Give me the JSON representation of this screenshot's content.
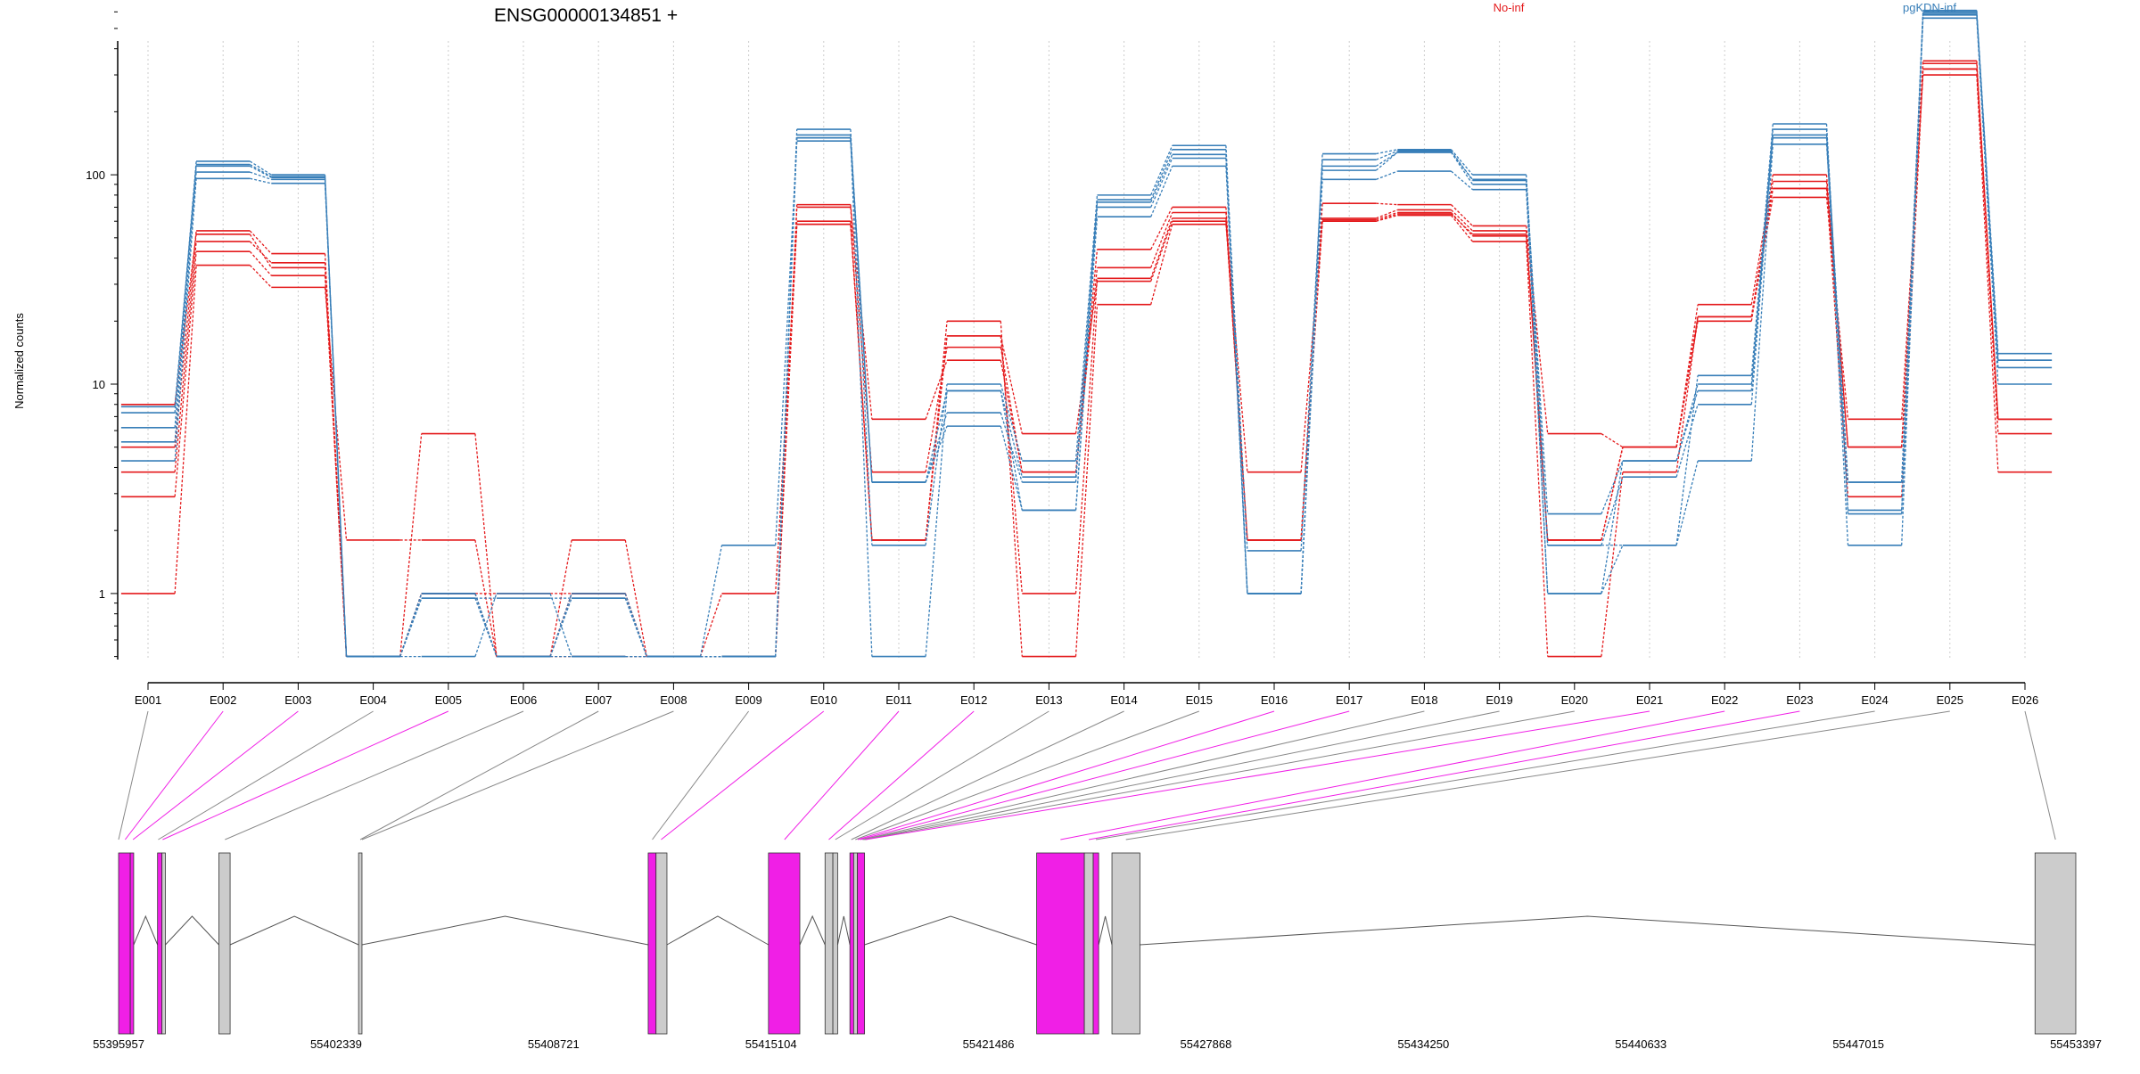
{
  "chart_data": {
    "type": "line",
    "title": "ENSG00000134851 +",
    "ylabel": "Normalized counts",
    "xlabel": "",
    "yscale": "log",
    "ylim": [
      0.5,
      800
    ],
    "yticks": [
      1,
      10,
      100
    ],
    "ytick_labels": [
      "1",
      "10",
      "100"
    ],
    "categories": [
      "E001",
      "E002",
      "E003",
      "E004",
      "E005",
      "E006",
      "E007",
      "E008",
      "E009",
      "E010",
      "E011",
      "E012",
      "E013",
      "E014",
      "E015",
      "E016",
      "E017",
      "E018",
      "E019",
      "E020",
      "E021",
      "E022",
      "E023",
      "E024",
      "E025",
      "E026"
    ],
    "legend": [
      {
        "label": "No-inf",
        "color": "#e41a1c"
      },
      {
        "label": "pgKDN-inf",
        "color": "#377eb8"
      }
    ],
    "legend_position": "top-right",
    "grid": "vertical dotted",
    "series": [
      {
        "group": "No-inf",
        "color": "#e41a1c",
        "values": [
          1,
          37,
          29,
          1.8,
          1.8,
          0.5,
          1.8,
          0.5,
          1,
          58,
          1.8,
          20,
          0.5,
          24,
          58,
          3.8,
          60,
          64,
          48,
          0.5,
          3.8,
          21,
          78,
          6.8,
          300,
          3.8
        ]
      },
      {
        "group": "No-inf",
        "color": "#e41a1c",
        "values": [
          2.9,
          43,
          33,
          0.5,
          5.8,
          0.5,
          0.5,
          0.5,
          0.5,
          60,
          1.8,
          17,
          1,
          32,
          62,
          1.8,
          61,
          66,
          51,
          1.8,
          5,
          21,
          86,
          2.9,
          320,
          5.8
        ]
      },
      {
        "group": "No-inf",
        "color": "#e41a1c",
        "values": [
          3.8,
          48,
          38,
          0.5,
          1,
          1,
          1,
          0.5,
          0.5,
          70,
          3.8,
          15,
          3.8,
          36,
          66,
          1.8,
          62,
          68,
          54,
          1.8,
          5,
          21,
          93,
          5,
          340,
          6.8
        ]
      },
      {
        "group": "No-inf",
        "color": "#e41a1c",
        "values": [
          5,
          54,
          42,
          0.5,
          1,
          0.5,
          1,
          0.5,
          0.5,
          72,
          6.8,
          13,
          3.8,
          44,
          70,
          1.8,
          73,
          72,
          57,
          5.8,
          5,
          24,
          100,
          5,
          350,
          6.8
        ]
      },
      {
        "group": "No-inf",
        "color": "#e41a1c",
        "values": [
          8,
          52,
          36,
          0.5,
          1,
          0.5,
          1,
          0.5,
          0.5,
          58,
          1.8,
          17,
          5.8,
          31,
          60,
          1.8,
          60,
          65,
          52,
          1.8,
          5,
          20,
          86,
          5,
          320,
          6.8
        ]
      },
      {
        "group": "pgKDN-inf",
        "color": "#377eb8",
        "values": [
          4.3,
          96,
          91,
          0.5,
          0.5,
          1,
          0.5,
          0.5,
          1.7,
          145,
          3.4,
          6.3,
          2.5,
          63,
          110,
          1,
          95,
          104,
          85,
          1,
          1.7,
          4.3,
          140,
          3.4,
          560,
          10
        ]
      },
      {
        "group": "pgKDN-inf",
        "color": "#377eb8",
        "values": [
          5.3,
          103,
          95,
          0.5,
          0.95,
          0.5,
          0.95,
          0.5,
          0.5,
          150,
          3.4,
          7.3,
          3.4,
          70,
          120,
          1,
          110,
          128,
          90,
          1.7,
          3.6,
          8,
          155,
          3.4,
          590,
          12
        ]
      },
      {
        "group": "pgKDN-inf",
        "color": "#377eb8",
        "values": [
          6.2,
          112,
          98,
          0.5,
          1,
          0.5,
          1,
          0.5,
          0.5,
          155,
          3.4,
          9.3,
          3.6,
          74,
          125,
          1.6,
          118,
          130,
          94,
          2.4,
          4.3,
          9.3,
          165,
          2.5,
          600,
          13
        ]
      },
      {
        "group": "pgKDN-inf",
        "color": "#377eb8",
        "values": [
          7.3,
          116,
          100,
          0.5,
          1,
          0.5,
          0.5,
          0.5,
          0.5,
          165,
          1.7,
          10,
          4.3,
          80,
          138,
          1,
          126,
          132,
          100,
          1.7,
          1.7,
          11,
          175,
          2.4,
          610,
          14
        ]
      },
      {
        "group": "pgKDN-inf",
        "color": "#377eb8",
        "values": [
          7.8,
          110,
          97,
          0.5,
          0.95,
          0.95,
          0.95,
          0.5,
          0.5,
          150,
          0.5,
          9.3,
          2.5,
          76,
          132,
          1,
          105,
          128,
          95,
          1,
          4.3,
          10,
          150,
          1.7,
          580,
          13
        ]
      }
    ],
    "gene_model": {
      "coordinate_labels": [
        "55395957",
        "55402339",
        "55408721",
        "55415104",
        "55421486",
        "55427868",
        "55434250",
        "55440633",
        "55447015",
        "55453397"
      ],
      "coordinate_range": [
        55395957,
        55453397
      ],
      "significant_color": "#f01fe6",
      "normal_color": "#cccccc",
      "exon_segments": [
        {
          "start": 55395957,
          "end": 55396300,
          "highlight": true
        },
        {
          "start": 55396300,
          "end": 55396400,
          "highlight": true
        },
        {
          "start": 55397100,
          "end": 55397230,
          "highlight": true
        },
        {
          "start": 55397230,
          "end": 55397330,
          "highlight": false
        },
        {
          "start": 55398900,
          "end": 55399230,
          "highlight": false
        },
        {
          "start": 55403000,
          "end": 55403100,
          "highlight": false
        },
        {
          "start": 55411500,
          "end": 55411730,
          "highlight": true
        },
        {
          "start": 55411730,
          "end": 55412050,
          "highlight": false
        },
        {
          "start": 55415030,
          "end": 55415950,
          "highlight": true
        },
        {
          "start": 55416690,
          "end": 55416920,
          "highlight": false
        },
        {
          "start": 55416920,
          "end": 55417060,
          "highlight": false
        },
        {
          "start": 55417420,
          "end": 55417530,
          "highlight": true
        },
        {
          "start": 55417530,
          "end": 55417640,
          "highlight": false
        },
        {
          "start": 55417640,
          "end": 55417850,
          "highlight": true
        },
        {
          "start": 55422900,
          "end": 55424300,
          "highlight": true
        },
        {
          "start": 55424300,
          "end": 55424560,
          "highlight": false
        },
        {
          "start": 55424560,
          "end": 55424720,
          "highlight": true
        },
        {
          "start": 55425110,
          "end": 55425930,
          "highlight": false
        },
        {
          "start": 55452200,
          "end": 55453397,
          "highlight": false
        }
      ],
      "mapping": [
        {
          "exon": "E001",
          "genomic": 55395957,
          "highlight": false
        },
        {
          "exon": "E002",
          "genomic": 55396150,
          "highlight": true
        },
        {
          "exon": "E003",
          "genomic": 55396380,
          "highlight": true
        },
        {
          "exon": "E004",
          "genomic": 55397120,
          "highlight": false
        },
        {
          "exon": "E005",
          "genomic": 55397250,
          "highlight": true
        },
        {
          "exon": "E006",
          "genomic": 55399080,
          "highlight": false
        },
        {
          "exon": "E007",
          "genomic": 55403050,
          "highlight": false
        },
        {
          "exon": "E008",
          "genomic": 55403100,
          "highlight": false
        },
        {
          "exon": "E009",
          "genomic": 55411620,
          "highlight": false
        },
        {
          "exon": "E010",
          "genomic": 55411880,
          "highlight": true
        },
        {
          "exon": "E011",
          "genomic": 55415500,
          "highlight": true
        },
        {
          "exon": "E012",
          "genomic": 55416800,
          "highlight": true
        },
        {
          "exon": "E013",
          "genomic": 55416990,
          "highlight": false
        },
        {
          "exon": "E014",
          "genomic": 55417460,
          "highlight": false
        },
        {
          "exon": "E015",
          "genomic": 55417580,
          "highlight": false
        },
        {
          "exon": "E016",
          "genomic": 55417650,
          "highlight": true
        },
        {
          "exon": "E017",
          "genomic": 55417720,
          "highlight": true
        },
        {
          "exon": "E018",
          "genomic": 55417790,
          "highlight": false
        },
        {
          "exon": "E019",
          "genomic": 55417820,
          "highlight": false
        },
        {
          "exon": "E020",
          "genomic": 55417850,
          "highlight": false
        },
        {
          "exon": "E021",
          "genomic": 55417880,
          "highlight": true
        },
        {
          "exon": "E022",
          "genomic": 55423600,
          "highlight": true
        },
        {
          "exon": "E023",
          "genomic": 55424430,
          "highlight": true
        },
        {
          "exon": "E024",
          "genomic": 55424640,
          "highlight": false
        },
        {
          "exon": "E025",
          "genomic": 55425520,
          "highlight": false
        },
        {
          "exon": "E026",
          "genomic": 55452800,
          "highlight": false
        }
      ]
    }
  }
}
